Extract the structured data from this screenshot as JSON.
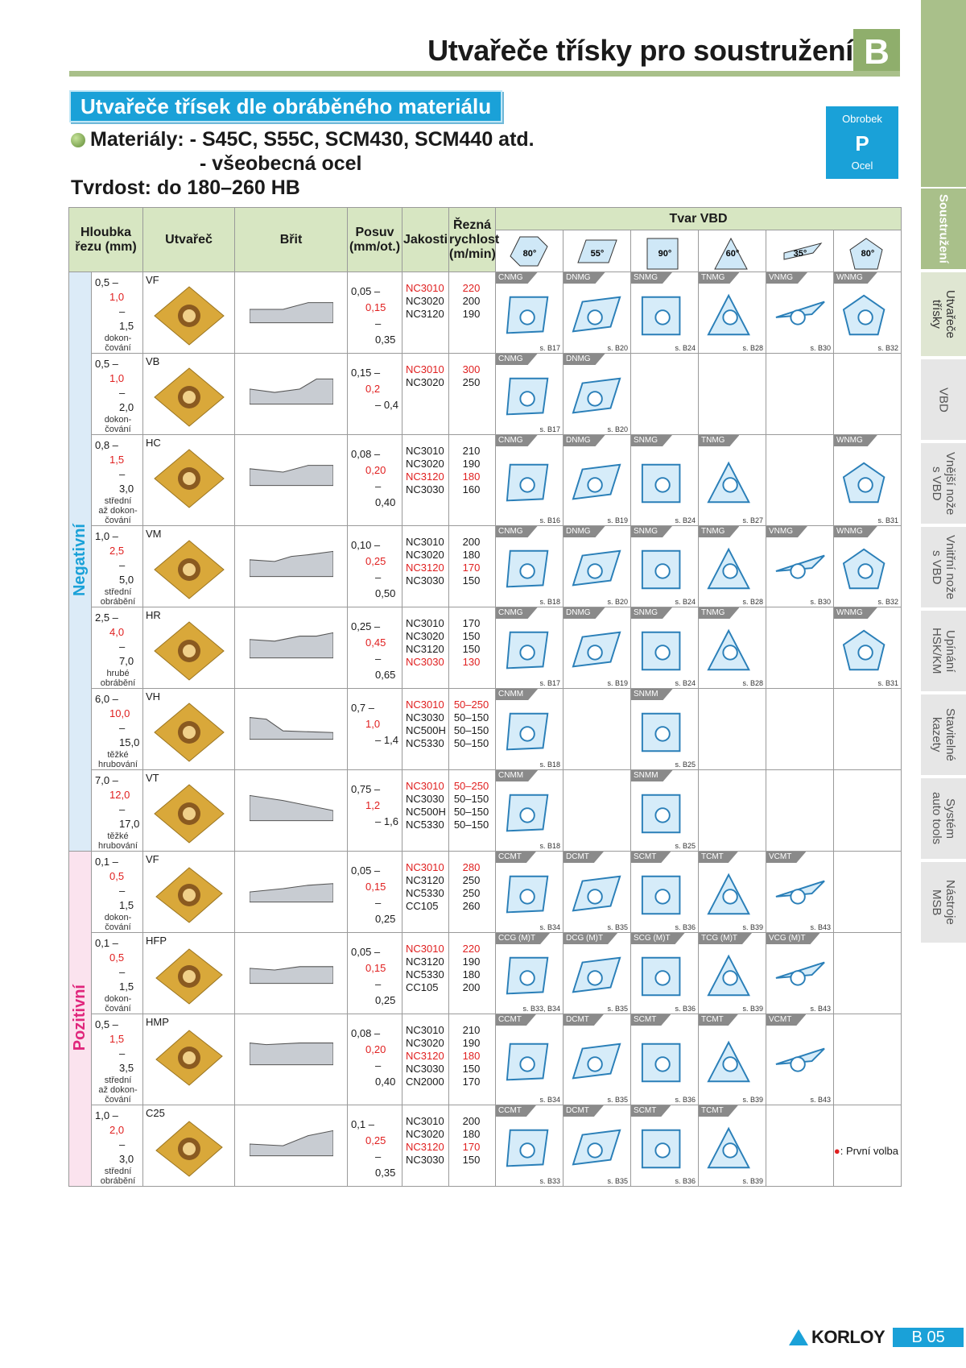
{
  "header": {
    "title": "Utvařeče třísky pro soustružení",
    "section_letter": "B",
    "subtitle": "Utvařeče třísek dle obráběného materiálu",
    "materials_label": "Materiály:",
    "materials_line1": "- S45C, S55C, SCM430, SCM440 atd.",
    "materials_line2": "- všeobecná ocel",
    "hardness": "Tvrdost: do 180–260 HB"
  },
  "workpiece": {
    "label": "Obrobek",
    "code": "P",
    "material": "Ocel"
  },
  "side_tabs": [
    {
      "label": "Soustružení"
    },
    {
      "label": "Utvařeče\ntřísky"
    },
    {
      "label": "VBD"
    },
    {
      "label": "Vnější nože\ns VBD"
    },
    {
      "label": "Vnitřní nože\ns VBD"
    },
    {
      "label": "Upínání\nHSK/KM"
    },
    {
      "label": "Stavitelné\nkazety"
    },
    {
      "label": "Systém\nauto tools"
    },
    {
      "label": "Nástroje\nMSB"
    }
  ],
  "table": {
    "headers": {
      "depth": "Hloubka řezu (mm)",
      "breaker": "Utvařeč",
      "edge": "Břit",
      "feed": "Posuv (mm/ot.)",
      "grades": "Jakosti",
      "speed": "Řezná rychlost (m/min)",
      "shape": "Tvar VBD"
    },
    "shapes": [
      {
        "angle": "80°",
        "color": "#cfe8f7"
      },
      {
        "angle": "55°",
        "color": "#cfe8f7"
      },
      {
        "angle": "90°",
        "color": "#cfe8f7"
      },
      {
        "angle": "60°",
        "color": "#cfe8f7"
      },
      {
        "angle": "35°",
        "color": "#cfe8f7"
      },
      {
        "angle": "80°",
        "color": "#cfe8f7"
      }
    ],
    "groups": {
      "negative": "Negativní",
      "positive": "Pozitivní"
    },
    "rows": [
      {
        "group": "neg",
        "depth": [
          "0,5 –",
          "1,0",
          "– 1,5"
        ],
        "depth_note": "dokon-\nčování",
        "breaker": "VF",
        "feed": [
          "0,05 –",
          "0,15",
          "– 0,35"
        ],
        "grades": [
          {
            "g": "NC3010",
            "r": true,
            "s": "220"
          },
          {
            "g": "NC3020",
            "s": "200"
          },
          {
            "g": "NC3120",
            "s": "190"
          }
        ],
        "ins": [
          {
            "t": "CNMG",
            "ref": "s. B17"
          },
          {
            "t": "DNMG",
            "ref": "s. B20"
          },
          {
            "t": "SNMG",
            "ref": "s. B24"
          },
          {
            "t": "TNMG",
            "ref": "s. B28"
          },
          {
            "t": "VNMG",
            "ref": "s. B30"
          },
          {
            "t": "WNMG",
            "ref": "s. B32"
          }
        ]
      },
      {
        "group": "neg",
        "depth": [
          "0,5 –",
          "1,0",
          "– 2,0"
        ],
        "depth_note": "dokon-\nčování",
        "breaker": "VB",
        "feed": [
          "0,15 –",
          "0,2",
          "– 0,4"
        ],
        "grades": [
          {
            "g": "NC3010",
            "r": true,
            "s": "300"
          },
          {
            "g": "NC3020",
            "s": "250"
          }
        ],
        "ins": [
          {
            "t": "CNMG",
            "ref": "s. B17"
          },
          {
            "t": "DNMG",
            "ref": "s. B20"
          },
          null,
          null,
          null,
          null
        ]
      },
      {
        "group": "neg",
        "depth": [
          "0,8 –",
          "1,5",
          "– 3,0"
        ],
        "depth_note": "střední\naž dokon-\nčování",
        "breaker": "HC",
        "feed": [
          "0,08 –",
          "0,20",
          "– 0,40"
        ],
        "grades": [
          {
            "g": "NC3010",
            "s": "210"
          },
          {
            "g": "NC3020",
            "s": "190"
          },
          {
            "g": "NC3120",
            "r": true,
            "s": "180"
          },
          {
            "g": "NC3030",
            "s": "160"
          }
        ],
        "ins": [
          {
            "t": "CNMG",
            "ref": "s. B16"
          },
          {
            "t": "DNMG",
            "ref": "s. B19"
          },
          {
            "t": "SNMG",
            "ref": "s. B24"
          },
          {
            "t": "TNMG",
            "ref": "s. B27"
          },
          null,
          {
            "t": "WNMG",
            "ref": "s. B31"
          }
        ]
      },
      {
        "group": "neg",
        "depth": [
          "1,0 –",
          "2,5",
          "– 5,0"
        ],
        "depth_note": "střední\nobrábění",
        "breaker": "VM",
        "feed": [
          "0,10 –",
          "0,25",
          "– 0,50"
        ],
        "grades": [
          {
            "g": "NC3010",
            "s": "200"
          },
          {
            "g": "NC3020",
            "s": "180"
          },
          {
            "g": "NC3120",
            "r": true,
            "s": "170"
          },
          {
            "g": "NC3030",
            "s": "150"
          }
        ],
        "ins": [
          {
            "t": "CNMG",
            "ref": "s. B18"
          },
          {
            "t": "DNMG",
            "ref": "s. B20"
          },
          {
            "t": "SNMG",
            "ref": "s. B24"
          },
          {
            "t": "TNMG",
            "ref": "s. B28"
          },
          {
            "t": "VNMG",
            "ref": "s. B30"
          },
          {
            "t": "WNMG",
            "ref": "s. B32"
          }
        ]
      },
      {
        "group": "neg",
        "depth": [
          "2,5 –",
          "4,0",
          "– 7,0"
        ],
        "depth_note": "hrubé\nobrábění",
        "breaker": "HR",
        "feed": [
          "0,25 –",
          "0,45",
          "– 0,65"
        ],
        "grades": [
          {
            "g": "NC3010",
            "s": "170"
          },
          {
            "g": "NC3020",
            "s": "150"
          },
          {
            "g": "NC3120",
            "s": "150"
          },
          {
            "g": "NC3030",
            "r": true,
            "s": "130"
          }
        ],
        "ins": [
          {
            "t": "CNMG",
            "ref": "s. B17"
          },
          {
            "t": "DNMG",
            "ref": "s. B19"
          },
          {
            "t": "SNMG",
            "ref": "s. B24"
          },
          {
            "t": "TNMG",
            "ref": "s. B28"
          },
          null,
          {
            "t": "WNMG",
            "ref": "s. B31"
          }
        ]
      },
      {
        "group": "neg",
        "depth": [
          "6,0 –",
          "10,0",
          "– 15,0"
        ],
        "depth_note": "těžké\nhrubování",
        "breaker": "VH",
        "feed": [
          "0,7 –",
          "1,0",
          "– 1,4"
        ],
        "grades": [
          {
            "g": "NC3010",
            "r": true,
            "s": "50–250"
          },
          {
            "g": "NC3030",
            "s": "50–150"
          },
          {
            "g": "NC500H",
            "s": "50–150"
          },
          {
            "g": "NC5330",
            "s": "50–150"
          }
        ],
        "ins": [
          {
            "t": "CNMM",
            "ref": "s. B18"
          },
          null,
          {
            "t": "SNMM",
            "ref": "s. B25"
          },
          null,
          null,
          null
        ]
      },
      {
        "group": "neg",
        "depth": [
          "7,0 –",
          "12,0",
          "– 17,0"
        ],
        "depth_note": "těžké\nhrubování",
        "breaker": "VT",
        "feed": [
          "0,75 –",
          "1,2",
          "– 1,6"
        ],
        "grades": [
          {
            "g": "NC3010",
            "r": true,
            "s": "50–250"
          },
          {
            "g": "NC3030",
            "s": "50–150"
          },
          {
            "g": "NC500H",
            "s": "50–150"
          },
          {
            "g": "NC5330",
            "s": "50–150"
          }
        ],
        "ins": [
          {
            "t": "CNMM",
            "ref": "s. B18"
          },
          null,
          {
            "t": "SNMM",
            "ref": "s. B25"
          },
          null,
          null,
          null
        ]
      },
      {
        "group": "pos",
        "depth": [
          "0,1 –",
          "0,5",
          "– 1,5"
        ],
        "depth_note": "dokon-\nčování",
        "breaker": "VF",
        "feed": [
          "0,05 –",
          "0,15",
          "– 0,25"
        ],
        "grades": [
          {
            "g": "NC3010",
            "r": true,
            "s": "280"
          },
          {
            "g": "NC3120",
            "s": "250"
          },
          {
            "g": "NC5330",
            "s": "250"
          },
          {
            "g": "CC105",
            "s": "260"
          }
        ],
        "ins": [
          {
            "t": "CCMT",
            "ref": "s. B34"
          },
          {
            "t": "DCMT",
            "ref": "s. B35"
          },
          {
            "t": "SCMT",
            "ref": "s. B36"
          },
          {
            "t": "TCMT",
            "ref": "s. B39"
          },
          {
            "t": "VCMT",
            "ref": "s. B43"
          },
          null
        ]
      },
      {
        "group": "pos",
        "depth": [
          "0,1 –",
          "0,5",
          "– 1,5"
        ],
        "depth_note": "dokon-\nčování",
        "breaker": "HFP",
        "feed": [
          "0,05 –",
          "0,15",
          "– 0,25"
        ],
        "grades": [
          {
            "g": "NC3010",
            "r": true,
            "s": "220"
          },
          {
            "g": "NC3120",
            "s": "190"
          },
          {
            "g": "NC5330",
            "s": "180"
          },
          {
            "g": "CC105",
            "s": "200"
          }
        ],
        "ins": [
          {
            "t": "CCG (M)T",
            "ref": "s. B33, B34"
          },
          {
            "t": "DCG (M)T",
            "ref": "s. B35"
          },
          {
            "t": "SCG (M)T",
            "ref": "s. B36"
          },
          {
            "t": "TCG (M)T",
            "ref": "s. B39"
          },
          {
            "t": "VCG (M)T",
            "ref": "s. B43"
          },
          null
        ]
      },
      {
        "group": "pos",
        "depth": [
          "0,5 –",
          "1,5",
          "– 3,5"
        ],
        "depth_note": "střední\naž dokon-\nčování",
        "breaker": "HMP",
        "feed": [
          "0,08 –",
          "0,20",
          "– 0,40"
        ],
        "grades": [
          {
            "g": "NC3010",
            "s": "210"
          },
          {
            "g": "NC3020",
            "s": "190"
          },
          {
            "g": "NC3120",
            "r": true,
            "s": "180"
          },
          {
            "g": "NC3030",
            "s": "150"
          },
          {
            "g": "CN2000",
            "s": "170"
          }
        ],
        "ins": [
          {
            "t": "CCMT",
            "ref": "s. B34"
          },
          {
            "t": "DCMT",
            "ref": "s. B35"
          },
          {
            "t": "SCMT",
            "ref": "s. B36"
          },
          {
            "t": "TCMT",
            "ref": "s. B39"
          },
          {
            "t": "VCMT",
            "ref": "s. B43"
          },
          null
        ]
      },
      {
        "group": "pos",
        "depth": [
          "1,0 –",
          "2,0",
          "– 3,0"
        ],
        "depth_note": "střední\nobrábění",
        "breaker": "C25",
        "feed": [
          "0,1 –",
          "0,25",
          "– 0,35"
        ],
        "grades": [
          {
            "g": "NC3010",
            "s": "200"
          },
          {
            "g": "NC3020",
            "s": "180"
          },
          {
            "g": "NC3120",
            "r": true,
            "s": "170"
          },
          {
            "g": "NC3030",
            "s": "150"
          }
        ],
        "ins": [
          {
            "t": "CCMT",
            "ref": "s. B33"
          },
          {
            "t": "DCMT",
            "ref": "s. B35"
          },
          {
            "t": "SCMT",
            "ref": "s. B36"
          },
          {
            "t": "TCMT",
            "ref": "s. B39"
          },
          null,
          null
        ]
      }
    ]
  },
  "note": {
    "symbol": "●",
    "text": ": První volba",
    "color": "#e02020"
  },
  "footer": {
    "brand": "KORLOY",
    "page": "B 05"
  },
  "colors": {
    "accent": "#1aa1d8",
    "green": "#a9c08a",
    "red": "#e02020",
    "insert_blue": "#2a7fb8",
    "insert_gold": "#d9a83a"
  }
}
